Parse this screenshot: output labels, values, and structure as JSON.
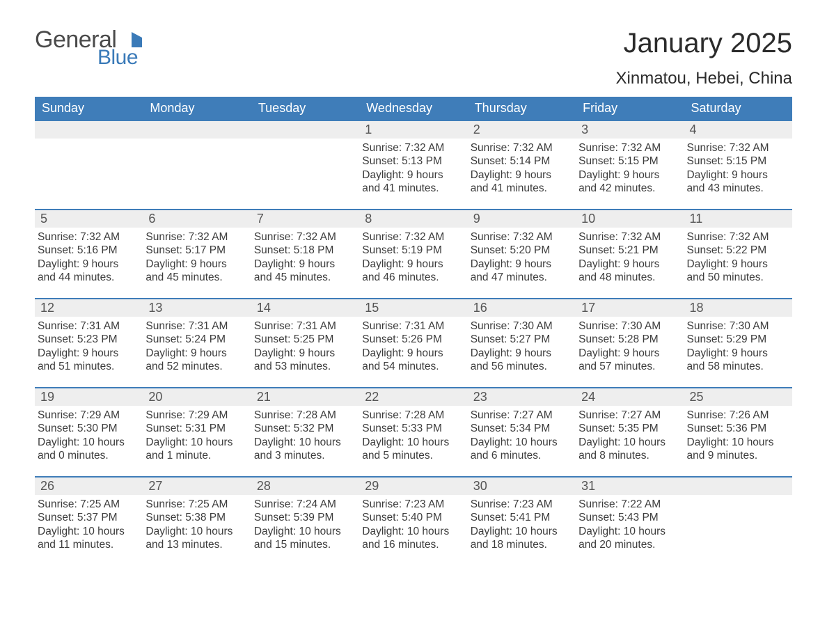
{
  "brand": {
    "word1": "General",
    "word2": "Blue",
    "flag_color": "#3a7ab8",
    "text_color": "#4a4a4a"
  },
  "title": "January 2025",
  "location": "Xinmatou, Hebei, China",
  "colors": {
    "header_bg": "#3f7db9",
    "header_text": "#ffffff",
    "daybar_bg": "#eeeeee",
    "daybar_border": "#3f7db9",
    "body_text": "#3c3c3c",
    "page_bg": "#ffffff"
  },
  "weekdays": [
    "Sunday",
    "Monday",
    "Tuesday",
    "Wednesday",
    "Thursday",
    "Friday",
    "Saturday"
  ],
  "weeks": [
    [
      null,
      null,
      null,
      {
        "n": "1",
        "sunrise": "7:32 AM",
        "sunset": "5:13 PM",
        "daylight": "9 hours and 41 minutes."
      },
      {
        "n": "2",
        "sunrise": "7:32 AM",
        "sunset": "5:14 PM",
        "daylight": "9 hours and 41 minutes."
      },
      {
        "n": "3",
        "sunrise": "7:32 AM",
        "sunset": "5:15 PM",
        "daylight": "9 hours and 42 minutes."
      },
      {
        "n": "4",
        "sunrise": "7:32 AM",
        "sunset": "5:15 PM",
        "daylight": "9 hours and 43 minutes."
      }
    ],
    [
      {
        "n": "5",
        "sunrise": "7:32 AM",
        "sunset": "5:16 PM",
        "daylight": "9 hours and 44 minutes."
      },
      {
        "n": "6",
        "sunrise": "7:32 AM",
        "sunset": "5:17 PM",
        "daylight": "9 hours and 45 minutes."
      },
      {
        "n": "7",
        "sunrise": "7:32 AM",
        "sunset": "5:18 PM",
        "daylight": "9 hours and 45 minutes."
      },
      {
        "n": "8",
        "sunrise": "7:32 AM",
        "sunset": "5:19 PM",
        "daylight": "9 hours and 46 minutes."
      },
      {
        "n": "9",
        "sunrise": "7:32 AM",
        "sunset": "5:20 PM",
        "daylight": "9 hours and 47 minutes."
      },
      {
        "n": "10",
        "sunrise": "7:32 AM",
        "sunset": "5:21 PM",
        "daylight": "9 hours and 48 minutes."
      },
      {
        "n": "11",
        "sunrise": "7:32 AM",
        "sunset": "5:22 PM",
        "daylight": "9 hours and 50 minutes."
      }
    ],
    [
      {
        "n": "12",
        "sunrise": "7:31 AM",
        "sunset": "5:23 PM",
        "daylight": "9 hours and 51 minutes."
      },
      {
        "n": "13",
        "sunrise": "7:31 AM",
        "sunset": "5:24 PM",
        "daylight": "9 hours and 52 minutes."
      },
      {
        "n": "14",
        "sunrise": "7:31 AM",
        "sunset": "5:25 PM",
        "daylight": "9 hours and 53 minutes."
      },
      {
        "n": "15",
        "sunrise": "7:31 AM",
        "sunset": "5:26 PM",
        "daylight": "9 hours and 54 minutes."
      },
      {
        "n": "16",
        "sunrise": "7:30 AM",
        "sunset": "5:27 PM",
        "daylight": "9 hours and 56 minutes."
      },
      {
        "n": "17",
        "sunrise": "7:30 AM",
        "sunset": "5:28 PM",
        "daylight": "9 hours and 57 minutes."
      },
      {
        "n": "18",
        "sunrise": "7:30 AM",
        "sunset": "5:29 PM",
        "daylight": "9 hours and 58 minutes."
      }
    ],
    [
      {
        "n": "19",
        "sunrise": "7:29 AM",
        "sunset": "5:30 PM",
        "daylight": "10 hours and 0 minutes."
      },
      {
        "n": "20",
        "sunrise": "7:29 AM",
        "sunset": "5:31 PM",
        "daylight": "10 hours and 1 minute."
      },
      {
        "n": "21",
        "sunrise": "7:28 AM",
        "sunset": "5:32 PM",
        "daylight": "10 hours and 3 minutes."
      },
      {
        "n": "22",
        "sunrise": "7:28 AM",
        "sunset": "5:33 PM",
        "daylight": "10 hours and 5 minutes."
      },
      {
        "n": "23",
        "sunrise": "7:27 AM",
        "sunset": "5:34 PM",
        "daylight": "10 hours and 6 minutes."
      },
      {
        "n": "24",
        "sunrise": "7:27 AM",
        "sunset": "5:35 PM",
        "daylight": "10 hours and 8 minutes."
      },
      {
        "n": "25",
        "sunrise": "7:26 AM",
        "sunset": "5:36 PM",
        "daylight": "10 hours and 9 minutes."
      }
    ],
    [
      {
        "n": "26",
        "sunrise": "7:25 AM",
        "sunset": "5:37 PM",
        "daylight": "10 hours and 11 minutes."
      },
      {
        "n": "27",
        "sunrise": "7:25 AM",
        "sunset": "5:38 PM",
        "daylight": "10 hours and 13 minutes."
      },
      {
        "n": "28",
        "sunrise": "7:24 AM",
        "sunset": "5:39 PM",
        "daylight": "10 hours and 15 minutes."
      },
      {
        "n": "29",
        "sunrise": "7:23 AM",
        "sunset": "5:40 PM",
        "daylight": "10 hours and 16 minutes."
      },
      {
        "n": "30",
        "sunrise": "7:23 AM",
        "sunset": "5:41 PM",
        "daylight": "10 hours and 18 minutes."
      },
      {
        "n": "31",
        "sunrise": "7:22 AM",
        "sunset": "5:43 PM",
        "daylight": "10 hours and 20 minutes."
      },
      null
    ]
  ],
  "labels": {
    "sunrise": "Sunrise: ",
    "sunset": "Sunset: ",
    "daylight": "Daylight: "
  }
}
